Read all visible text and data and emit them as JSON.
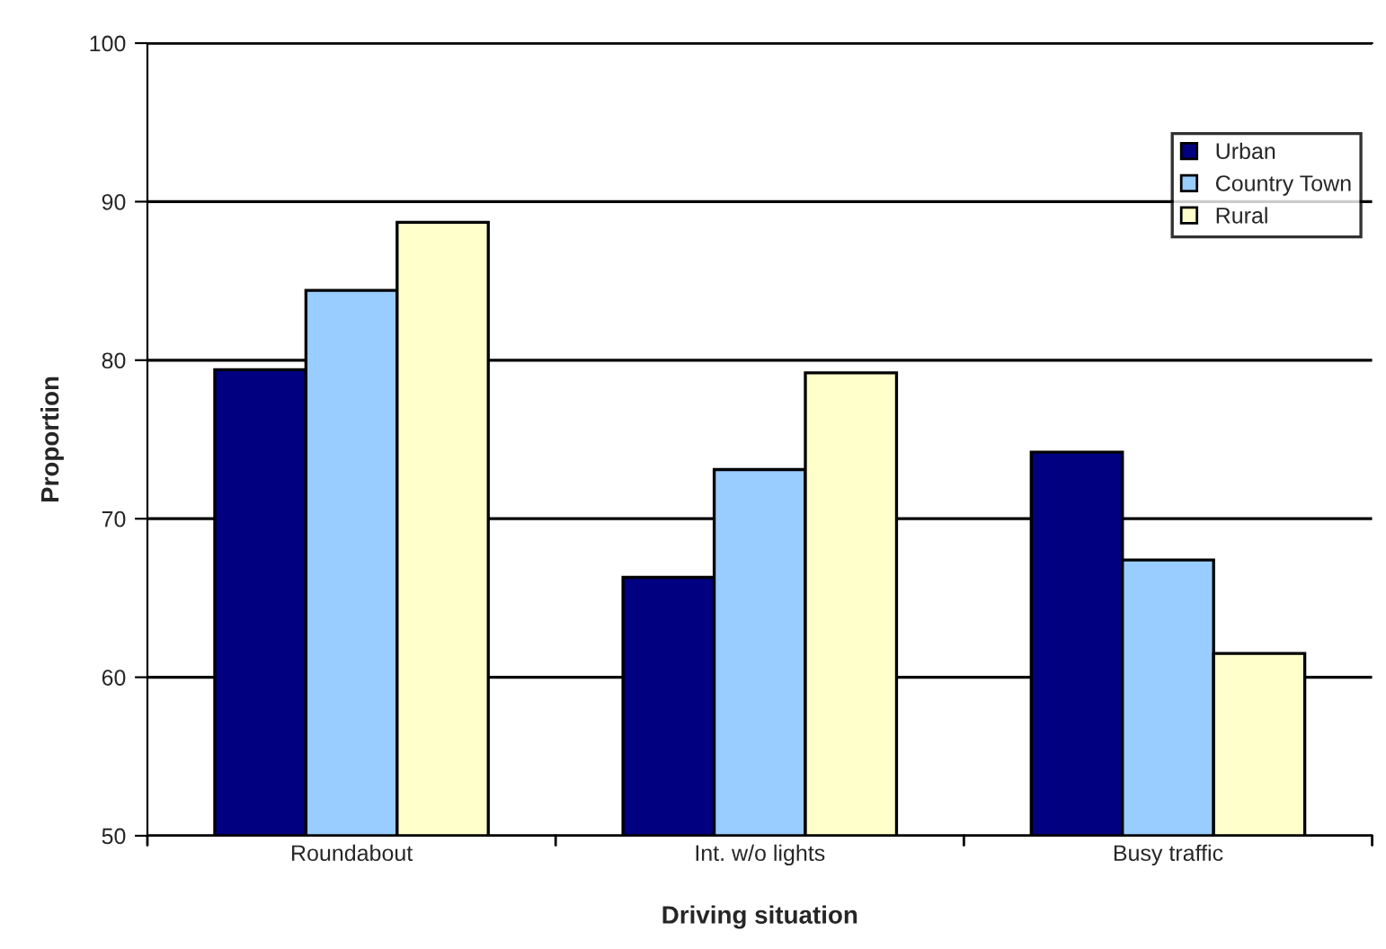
{
  "chart_data": {
    "type": "bar",
    "xlabel": "Driving situation",
    "ylabel": "Proportion",
    "categories": [
      "Roundabout",
      "Int. w/o lights",
      "Busy traffic"
    ],
    "series": [
      {
        "name": "Urban",
        "color": "#000080",
        "values": [
          79.4,
          66.3,
          74.2
        ]
      },
      {
        "name": "Country Town",
        "color": "#99ccff",
        "values": [
          84.4,
          73.1,
          67.4
        ]
      },
      {
        "name": "Rural",
        "color": "#ffffcc",
        "values": [
          88.7,
          79.2,
          61.5
        ]
      }
    ],
    "ylim": [
      50,
      100
    ],
    "yticks": [
      50,
      60,
      70,
      80,
      90,
      100
    ],
    "grid": "y",
    "legend": "top right"
  }
}
